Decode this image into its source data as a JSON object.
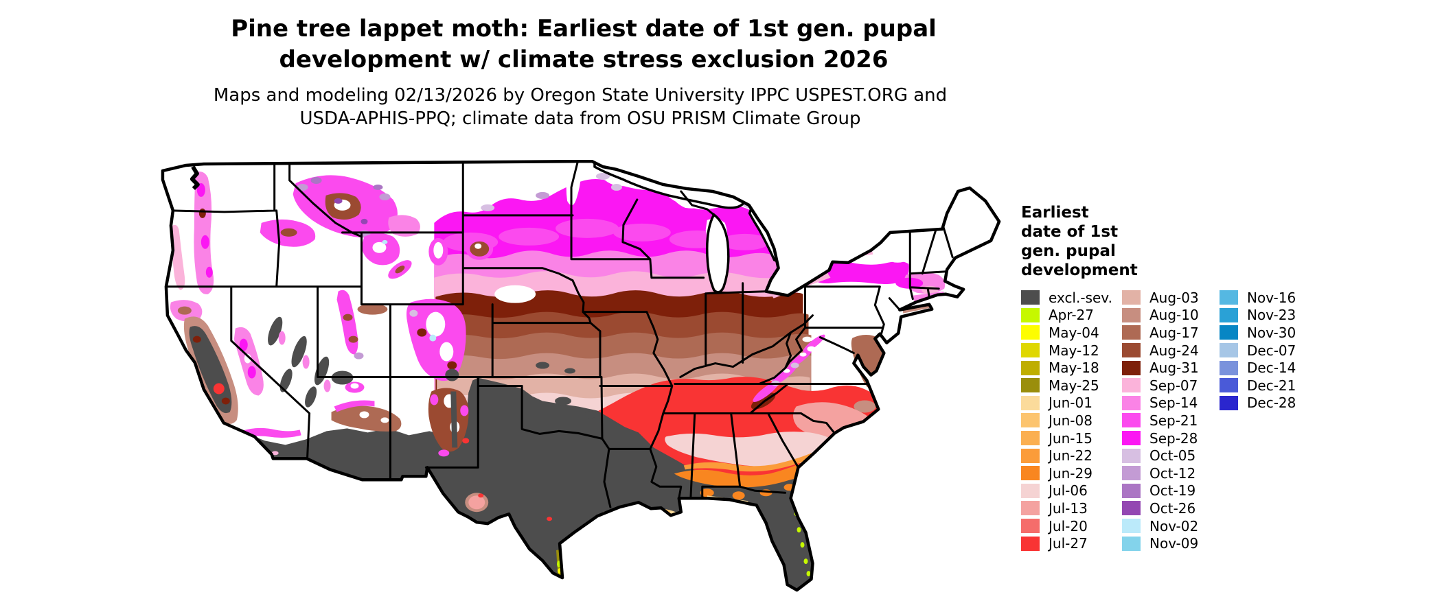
{
  "title": {
    "line1": "Pine tree lappet moth: Earliest date of 1st gen. pupal",
    "line2": "development w/ climate stress exclusion 2026"
  },
  "subtitle": {
    "line1": "Maps and modeling 02/13/2026 by Oregon State University IPPC USPEST.ORG and",
    "line2": "USDA-APHIS-PPQ; climate data from OSU PRISM Climate Group"
  },
  "legend": {
    "title_lines": [
      "Earliest",
      "date of 1st",
      "gen. pupal",
      "development"
    ],
    "column_sizes": [
      15,
      15,
      7
    ]
  },
  "chart_data": {
    "type": "choropleth-map",
    "region": "Contiguous United States",
    "title": "Pine tree lappet moth: Earliest date of 1st gen. pupal development w/ climate stress exclusion 2026",
    "legend_title": "Earliest date of 1st gen. pupal development",
    "year": "2026",
    "classes": [
      {
        "key": "excl",
        "label": "excl.-sev.",
        "color": "#4d4d4d"
      },
      {
        "key": "apr27",
        "label": "Apr-27",
        "color": "#c6f800"
      },
      {
        "key": "may04",
        "label": "May-04",
        "color": "#fdfd00"
      },
      {
        "key": "may12",
        "label": "May-12",
        "color": "#dfd700"
      },
      {
        "key": "may18",
        "label": "May-18",
        "color": "#bfae00"
      },
      {
        "key": "may25",
        "label": "May-25",
        "color": "#9a8e0c"
      },
      {
        "key": "jun01",
        "label": "Jun-01",
        "color": "#fbdb9b"
      },
      {
        "key": "jun08",
        "label": "Jun-08",
        "color": "#fcc46e"
      },
      {
        "key": "jun15",
        "label": "Jun-15",
        "color": "#fbaf51"
      },
      {
        "key": "jun22",
        "label": "Jun-22",
        "color": "#fb9c3a"
      },
      {
        "key": "jun29",
        "label": "Jun-29",
        "color": "#f98620"
      },
      {
        "key": "jul06",
        "label": "Jul-06",
        "color": "#f5d3d3"
      },
      {
        "key": "jul13",
        "label": "Jul-13",
        "color": "#f4a2a0"
      },
      {
        "key": "jul20",
        "label": "Jul-20",
        "color": "#f56d6b"
      },
      {
        "key": "jul27",
        "label": "Jul-27",
        "color": "#f93434"
      },
      {
        "key": "aug03",
        "label": "Aug-03",
        "color": "#e2b2a6"
      },
      {
        "key": "aug10",
        "label": "Aug-10",
        "color": "#c78e80"
      },
      {
        "key": "aug17",
        "label": "Aug-17",
        "color": "#ae6a54"
      },
      {
        "key": "aug24",
        "label": "Aug-24",
        "color": "#9b4a31"
      },
      {
        "key": "aug31",
        "label": "Aug-31",
        "color": "#7e200a"
      },
      {
        "key": "sep07",
        "label": "Sep-07",
        "color": "#fbb3da"
      },
      {
        "key": "sep14",
        "label": "Sep-14",
        "color": "#fa83e6"
      },
      {
        "key": "sep21",
        "label": "Sep-21",
        "color": "#fb4aee"
      },
      {
        "key": "sep28",
        "label": "Sep-28",
        "color": "#fb17f3"
      },
      {
        "key": "oct05",
        "label": "Oct-05",
        "color": "#d7bfe2"
      },
      {
        "key": "oct12",
        "label": "Oct-12",
        "color": "#c39bd4"
      },
      {
        "key": "oct19",
        "label": "Oct-19",
        "color": "#ab75c4"
      },
      {
        "key": "oct26",
        "label": "Oct-26",
        "color": "#9347b2"
      },
      {
        "key": "nov02",
        "label": "Nov-02",
        "color": "#bbeafa"
      },
      {
        "key": "nov09",
        "label": "Nov-09",
        "color": "#83d3eb"
      },
      {
        "key": "nov16",
        "label": "Nov-16",
        "color": "#55b8e2"
      },
      {
        "key": "nov23",
        "label": "Nov-23",
        "color": "#2aa1d6"
      },
      {
        "key": "nov30",
        "label": "Nov-30",
        "color": "#0786c4"
      },
      {
        "key": "dec07",
        "label": "Dec-07",
        "color": "#a6c6e6"
      },
      {
        "key": "dec14",
        "label": "Dec-14",
        "color": "#7a92dc"
      },
      {
        "key": "dec21",
        "label": "Dec-21",
        "color": "#4a5ad8"
      },
      {
        "key": "dec28",
        "label": "Dec-28",
        "color": "#2a26ce"
      }
    ],
    "geography_notes": "Latitudinal gradient: white/no-data far north and mountain west; purple fringe then magenta (late Sep) across ND/SD/MN/WI/MI/NY; pink (early Sep); dark-to-light browns (Aug) across Corn Belt, OH valley, mid-Atlantic; pale pink/salmon (Jul 06-13) across KS/MO/KY/piedmont; red (Jul 20-27) across OK/AR/TN/SE-VA; orange (late Jun) arc across southern MS/AL/GA/SC; tan (early Jun) Gulf coast fringe; chartreuse (Apr-May) south TX and FL coast specks; dark gray climate-stress exclusion across TX/LA/FL/desert SW and CA Central Valley; mottled magenta/brown mountain ranges in the west"
  }
}
